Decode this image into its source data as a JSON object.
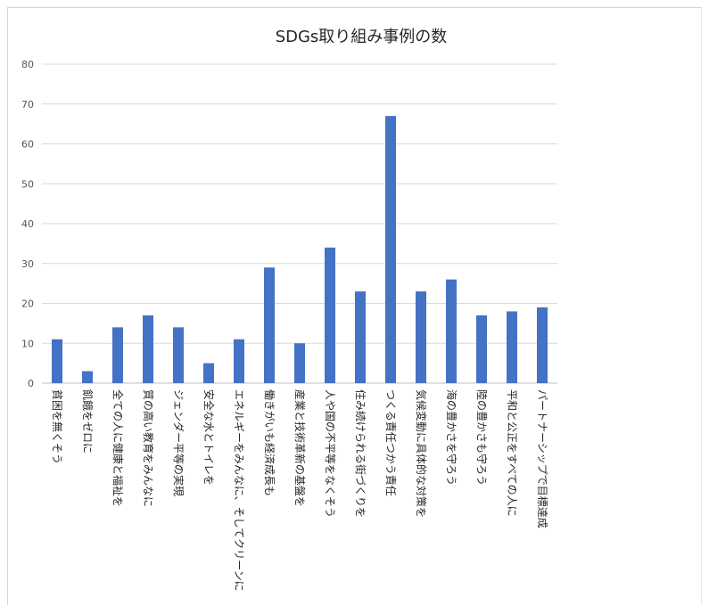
{
  "chart_data": {
    "type": "bar",
    "title": "SDGs取り組み事例の数",
    "xlabel": "",
    "ylabel": "",
    "ylim": [
      0,
      80
    ],
    "yticks": [
      0,
      10,
      20,
      30,
      40,
      50,
      60,
      70,
      80
    ],
    "grid": true,
    "legend": "none",
    "bar_color": "#4472c4",
    "categories": [
      "貧困を無くそう",
      "飢餓をゼロに",
      "全ての人に健康と福祉を",
      "質の高い教育をみんなに",
      "ジェンダー平等の実現",
      "安全な水とトイレを",
      "エネルギーをみんなに、そしてクリーンに",
      "働きがいも経済成長も",
      "産業と技術革新の基盤を",
      "人や国の不平等をなくそう",
      "住み続けられる街づくりを",
      "つくる責任つかう責任",
      "気候変動に具体的な対策を",
      "海の豊かさを守ろう",
      "陸の豊かさも守ろう",
      "平和と公正をすべての人に",
      "パートナーシップで目標達成"
    ],
    "values": [
      11,
      3,
      14,
      17,
      14,
      5,
      11,
      29,
      10,
      34,
      23,
      67,
      23,
      26,
      17,
      18,
      19
    ]
  }
}
